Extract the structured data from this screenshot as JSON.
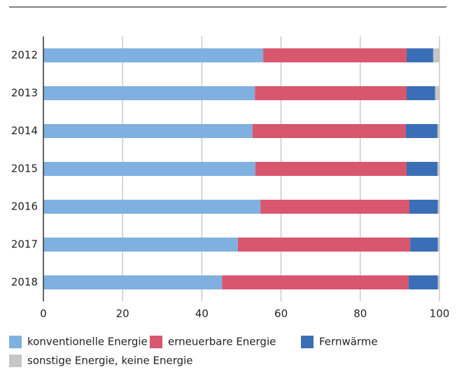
{
  "chart_data": {
    "type": "stacked-bar-horizontal",
    "categories": [
      "2012",
      "2013",
      "2014",
      "2015",
      "2016",
      "2017",
      "2018"
    ],
    "series": [
      {
        "name": "konventionelle Energie",
        "color": "#7fb0e0",
        "values": [
          55.5,
          53.4,
          52.8,
          53.5,
          54.8,
          49.1,
          45.1
        ]
      },
      {
        "name": "erneuerbare Energie",
        "color": "#d9566f",
        "values": [
          36.2,
          38.3,
          38.7,
          38.2,
          37.6,
          43.5,
          47.1
        ]
      },
      {
        "name": "Fernwärme",
        "color": "#3a6fb7",
        "values": [
          6.7,
          7.2,
          8.0,
          7.8,
          7.2,
          7.0,
          7.4
        ]
      },
      {
        "name": "sonstige Energie, keine Energie",
        "color": "#c6c6c6",
        "values": [
          1.6,
          1.1,
          0.5,
          0.5,
          0.4,
          0.4,
          0.4
        ]
      }
    ],
    "xlim": [
      0,
      100
    ],
    "xticks": [
      0,
      20,
      40,
      60,
      80,
      100
    ],
    "grid": true
  }
}
